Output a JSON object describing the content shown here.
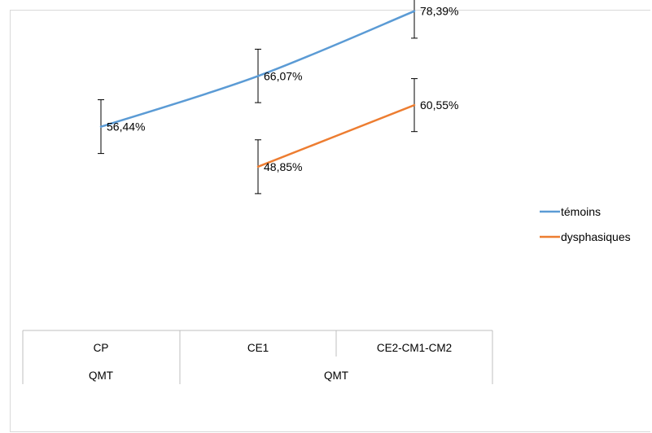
{
  "chart_data": {
    "type": "line",
    "categories": [
      "CP",
      "CE1",
      "CE2-CM1-CM2"
    ],
    "groups": [
      "QMT",
      "QMT"
    ],
    "series": [
      {
        "name": "témoins",
        "color": "#5b9bd5",
        "values": [
          56.44,
          66.07,
          78.39
        ],
        "labels": [
          "56,44%",
          "66,07%",
          "78,39%"
        ]
      },
      {
        "name": "dysphasiques",
        "color": "#ed7d31",
        "values": [
          null,
          48.85,
          60.55
        ],
        "labels": [
          "",
          "48,85%",
          "60,55%"
        ]
      }
    ],
    "error_bars": {
      "témoins": [
        [
          51.36,
          61.57
        ],
        [
          61.02,
          71.17
        ],
        [
          73.26,
          83.49
        ]
      ],
      "dysphasiques": [
        null,
        [
          43.74,
          53.96
        ],
        [
          55.52,
          65.58
        ]
      ]
    },
    "ylim": [
      30,
      90
    ],
    "grid": false,
    "legend_position": "right",
    "title": "",
    "xlabel": "",
    "ylabel": ""
  }
}
